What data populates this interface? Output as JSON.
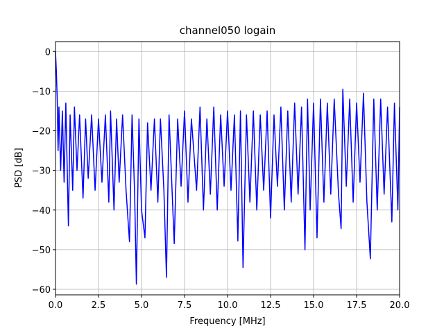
{
  "chart_data": {
    "type": "line",
    "title": "channel050 logain",
    "x_label": "Frequency [MHz]",
    "y_label": "PSD [dB]",
    "xlim": [
      0,
      20
    ],
    "ylim": [
      -61.4,
      2.5
    ],
    "xticks": [
      {
        "value": 0,
        "label": "0.0"
      },
      2.5,
      {
        "value": 5,
        "label": "5.0"
      },
      7.5,
      {
        "value": 10,
        "label": "10.0"
      },
      12.5,
      {
        "value": 15,
        "label": "15.0"
      },
      17.5,
      {
        "value": 20,
        "label": "20.0"
      }
    ],
    "yticks": [
      0,
      {
        "value": -10,
        "label": "−10"
      },
      {
        "value": -20,
        "label": "−20"
      },
      {
        "value": -30,
        "label": "−30"
      },
      {
        "value": -40,
        "label": "−40"
      },
      {
        "value": -50,
        "label": "−50"
      },
      {
        "value": -60,
        "label": "−60"
      }
    ],
    "grid": true,
    "series": [
      {
        "color": "#0000ff",
        "x": [
          0,
          0.05,
          0.1,
          0.15,
          0.2,
          0.3,
          0.4,
          0.5,
          0.6,
          0.75,
          0.85,
          1.0,
          1.1,
          1.25,
          1.4,
          1.6,
          1.75,
          1.9,
          2.1,
          2.3,
          2.5,
          2.7,
          2.9,
          3.1,
          3.2,
          3.4,
          3.55,
          3.7,
          3.9,
          4.1,
          4.3,
          4.45,
          4.6,
          4.7,
          4.85,
          5.0,
          5.2,
          5.35,
          5.55,
          5.75,
          5.95,
          6.1,
          6.3,
          6.45,
          6.6,
          6.9,
          7.1,
          7.3,
          7.5,
          7.7,
          7.9,
          8.2,
          8.4,
          8.6,
          8.8,
          9.0,
          9.2,
          9.4,
          9.6,
          9.8,
          10.0,
          10.2,
          10.4,
          10.6,
          10.75,
          10.9,
          11.1,
          11.3,
          11.5,
          11.7,
          11.9,
          12.1,
          12.3,
          12.5,
          12.7,
          12.9,
          13.1,
          13.3,
          13.5,
          13.7,
          13.9,
          14.1,
          14.3,
          14.5,
          14.65,
          14.8,
          15.0,
          15.2,
          15.4,
          15.6,
          15.8,
          16.0,
          16.2,
          16.45,
          16.6,
          16.7,
          16.9,
          17.1,
          17.3,
          17.5,
          17.7,
          17.9,
          18.1,
          18.3,
          18.5,
          18.7,
          18.9,
          19.1,
          19.3,
          19.55,
          19.7,
          19.9,
          20.0
        ],
        "values": [
          0,
          -5,
          -12,
          -25,
          -14,
          -30,
          -15,
          -33,
          -13,
          -44,
          -16,
          -35,
          -14,
          -30,
          -16,
          -37,
          -17,
          -32,
          -16,
          -35,
          -17,
          -33,
          -16,
          -38,
          -15,
          -40,
          -17,
          -33,
          -16,
          -35,
          -48,
          -16,
          -36,
          -58.7,
          -17,
          -40,
          -47,
          -18,
          -35,
          -17,
          -38,
          -17,
          -35,
          -57,
          -16,
          -48.5,
          -17,
          -34,
          -15,
          -38,
          -17,
          -35,
          -14,
          -40,
          -17,
          -36,
          -14,
          -40,
          -16,
          -34,
          -15,
          -35,
          -16,
          -47.8,
          -15,
          -54.5,
          -16,
          -38,
          -15,
          -40,
          -16,
          -35,
          -15,
          -42,
          -16,
          -34,
          -14,
          -40,
          -15,
          -38,
          -13,
          -36,
          -14,
          -50,
          -12,
          -40,
          -13,
          -47,
          -12,
          -38,
          -13,
          -36,
          -12,
          -36,
          -44.7,
          -9.5,
          -34,
          -12,
          -38,
          -13,
          -33,
          -10.5,
          -38,
          -52.3,
          -12,
          -40,
          -12,
          -36,
          -14,
          -43,
          -13,
          -40,
          -14
        ]
      }
    ]
  }
}
